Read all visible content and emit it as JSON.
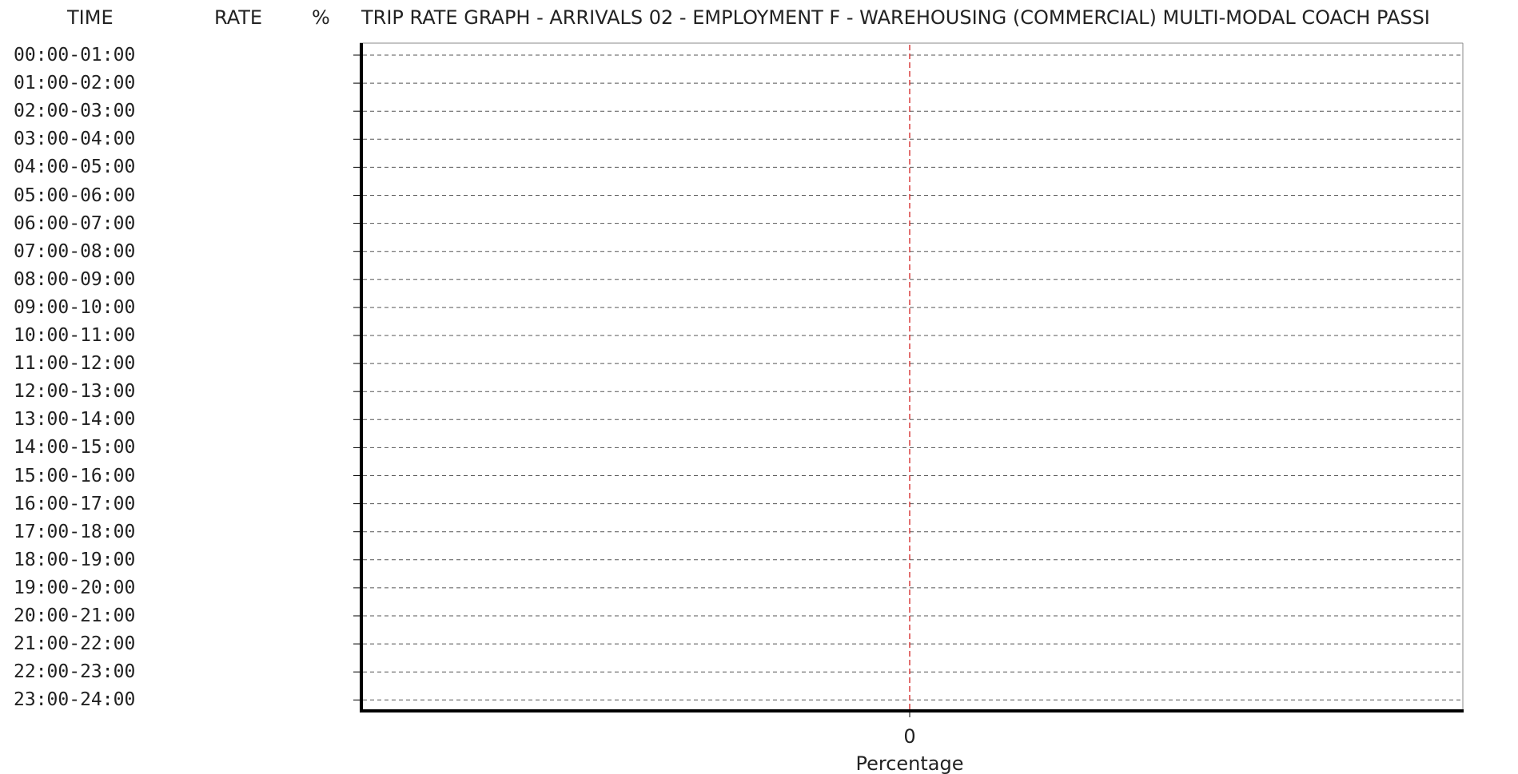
{
  "header": {
    "time_label": "TIME",
    "rate_label": "RATE",
    "percent_label": "%",
    "title": "TRIP RATE GRAPH - ARRIVALS  02 - EMPLOYMENT  F - WAREHOUSING (COMMERCIAL)    MULTI-MODAL  COACH PASSI"
  },
  "chart_data": {
    "type": "bar",
    "orientation": "horizontal",
    "categories": [
      "00:00-01:00",
      "01:00-02:00",
      "02:00-03:00",
      "03:00-04:00",
      "04:00-05:00",
      "05:00-06:00",
      "06:00-07:00",
      "07:00-08:00",
      "08:00-09:00",
      "09:00-10:00",
      "10:00-11:00",
      "11:00-12:00",
      "12:00-13:00",
      "13:00-14:00",
      "14:00-15:00",
      "15:00-16:00",
      "16:00-17:00",
      "17:00-18:00",
      "18:00-19:00",
      "19:00-20:00",
      "20:00-21:00",
      "21:00-22:00",
      "22:00-23:00",
      "23:00-24:00"
    ],
    "rates": [
      "",
      "",
      "",
      "",
      "",
      "",
      "",
      "",
      "",
      "",
      "",
      "",
      "",
      "",
      "",
      "",
      "",
      "",
      "",
      "",
      "",
      "",
      "",
      ""
    ],
    "percents": [
      "",
      "",
      "",
      "",
      "",
      "",
      "",
      "",
      "",
      "",
      "",
      "",
      "",
      "",
      "",
      "",
      "",
      "",
      "",
      "",
      "",
      "",
      "",
      ""
    ],
    "x_ticks": [
      "0"
    ],
    "xlabel": "Percentage",
    "ylabel": "",
    "title": "",
    "grid": true,
    "reference_line_color": "#d22020",
    "gridline_color": "#555555",
    "axis_color": "#000000"
  }
}
